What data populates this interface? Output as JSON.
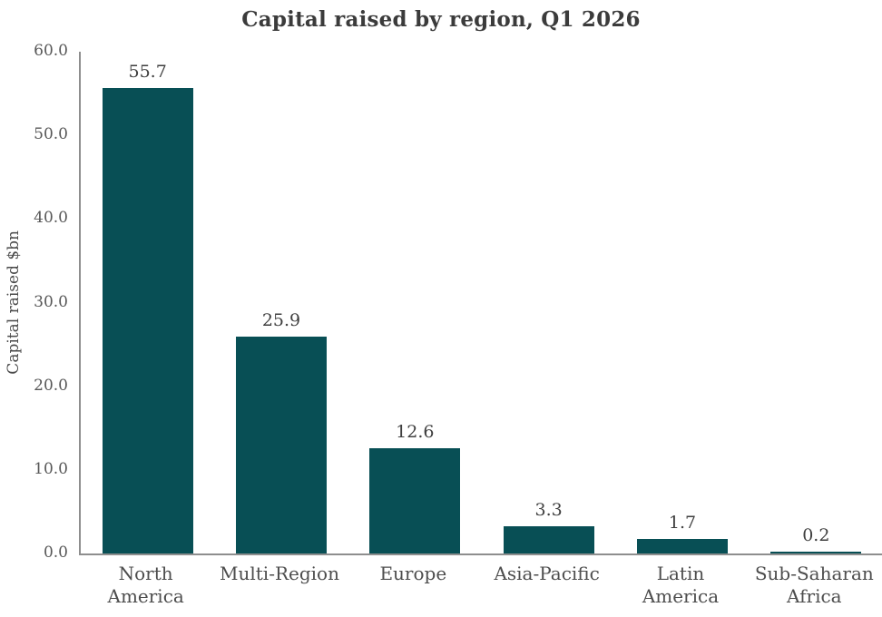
{
  "chart_data": {
    "type": "bar",
    "title": "Capital raised by region, Q1 2026",
    "ylabel": "Capital raised $bn",
    "xlabel": "",
    "categories": [
      "North America",
      "Multi-Region",
      "Europe",
      "Asia-Pacific",
      "Latin America",
      "Sub-Saharan Africa"
    ],
    "values": [
      55.7,
      25.9,
      12.6,
      3.3,
      1.7,
      0.2
    ],
    "data_labels": [
      "55.7",
      "25.9",
      "12.6",
      "3.3",
      "1.7",
      "0.2"
    ],
    "ylim": [
      0,
      60
    ],
    "ytick_step": 10,
    "ytick_labels_top_to_bottom": [
      "60.0",
      "50.0",
      "40.0",
      "30.0",
      "20.0",
      "10.0",
      "0.0"
    ],
    "grid": false,
    "legend": "none",
    "bar_color": "#084f55",
    "colors": {
      "title": "#3b3b3b",
      "axis_line": "#8e8e8e",
      "ytick_label": "#575757",
      "xtick_label": "#4d4d4d",
      "data_label": "#3f3f3f",
      "background": "#ffffff"
    }
  }
}
